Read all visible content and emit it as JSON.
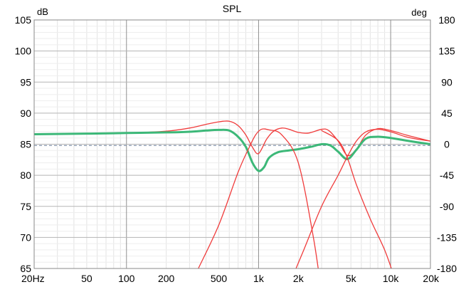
{
  "chart_data": {
    "type": "line",
    "title": "SPL",
    "y_unit_left": "dB",
    "y_unit_right": "deg",
    "x_scale": "log",
    "xlim": [
      20,
      20000
    ],
    "ylim": [
      65,
      105
    ],
    "ylim_right": [
      -180,
      180
    ],
    "grid": true,
    "x_ticks": [
      {
        "value": 20,
        "label": "20Hz"
      },
      {
        "value": 50,
        "label": "50"
      },
      {
        "value": 100,
        "label": "100"
      },
      {
        "value": 200,
        "label": "200"
      },
      {
        "value": 500,
        "label": "500"
      },
      {
        "value": 1000,
        "label": "1k"
      },
      {
        "value": 2000,
        "label": "2k"
      },
      {
        "value": 5000,
        "label": "5k"
      },
      {
        "value": 10000,
        "label": "10k"
      },
      {
        "value": 20000,
        "label": "20k"
      }
    ],
    "y_ticks": [
      105,
      100,
      95,
      90,
      85,
      80,
      75,
      70,
      65
    ],
    "y_ticks_right": [
      180,
      135,
      90,
      45,
      0,
      -45,
      -90,
      -135,
      -180
    ],
    "reference_level": 84.8,
    "colors": {
      "red": "#f03c3c",
      "green": "#3cb878",
      "reference": "#6a7f9a"
    },
    "series": [
      {
        "color": "red",
        "x": [
          20,
          50,
          100,
          200,
          300,
          400,
          500,
          600,
          700,
          800,
          900,
          1000,
          1150,
          1300,
          1500,
          1700,
          2000,
          2400,
          3000,
          3400,
          4000,
          4700,
          5500,
          6500,
          8000,
          10000,
          13000,
          16000,
          20000
        ],
        "y": [
          86.7,
          86.7,
          86.8,
          87.1,
          87.6,
          88.2,
          88.6,
          88.7,
          88.0,
          86.5,
          84.5,
          83.5,
          85.8,
          87.1,
          87.6,
          87.4,
          86.9,
          86.8,
          87.4,
          87.2,
          85.5,
          83.2,
          84.2,
          86.5,
          87.5,
          87.2,
          86.5,
          86.0,
          85.5
        ]
      },
      {
        "color": "green",
        "x": [
          20,
          50,
          100,
          200,
          300,
          400,
          500,
          600,
          700,
          800,
          900,
          1000,
          1100,
          1200,
          1400,
          1700,
          2000,
          2500,
          3000,
          3500,
          4000,
          4700,
          5500,
          6500,
          8000,
          10000,
          13000,
          16000,
          20000
        ],
        "y": [
          86.6,
          86.7,
          86.8,
          86.9,
          87.0,
          87.2,
          87.3,
          87.2,
          86.2,
          84.6,
          82.0,
          80.7,
          81.3,
          82.8,
          83.7,
          84.0,
          84.2,
          84.6,
          85.0,
          84.8,
          83.8,
          82.6,
          84.1,
          85.9,
          86.2,
          86.0,
          85.6,
          85.3,
          85.0
        ]
      },
      {
        "color": "red",
        "x": [
          350,
          500,
          700,
          850,
          950,
          1050,
          1200,
          1500,
          2000,
          2600,
          3000
        ],
        "y": [
          65.0,
          72.0,
          80.5,
          84.5,
          86.5,
          87.4,
          87.3,
          86.5,
          82.0,
          70.0,
          61.0
        ]
      },
      {
        "color": "red",
        "x": [
          1600,
          2200,
          3000,
          4000,
          4700,
          5500,
          6500,
          8000,
          10000,
          13000,
          16000,
          20000
        ],
        "y": [
          61.0,
          68.0,
          75.0,
          80.0,
          83.0,
          85.5,
          87.0,
          87.4,
          87.0,
          86.2,
          85.8,
          85.5
        ]
      },
      {
        "color": "red",
        "x": [
          3000,
          4000,
          4700,
          5500,
          7000,
          9000,
          10500
        ],
        "y": [
          87.2,
          85.6,
          82.8,
          78.5,
          73.0,
          68.0,
          64.0
        ]
      }
    ]
  }
}
